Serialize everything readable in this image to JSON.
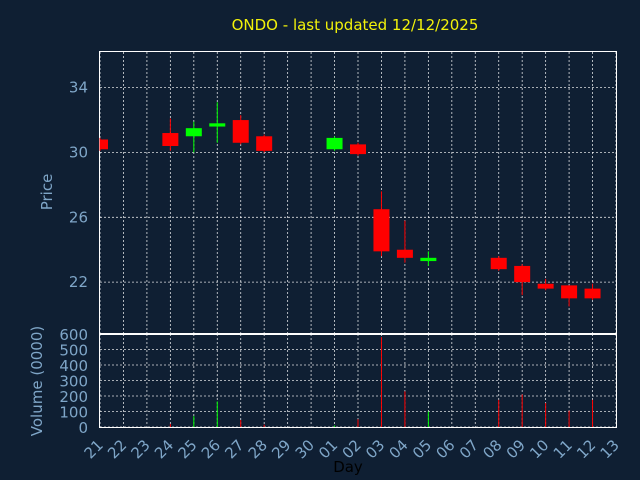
{
  "chart_data": {
    "type": "candlestick",
    "title": "ONDO - last updated 12/12/2025",
    "ylabel_price": "Price",
    "ylabel_volume": "Volume (0000)",
    "xlabel": "Day",
    "price_ticks": [
      "34",
      "30",
      "26",
      "22"
    ],
    "volume_ticks": [
      "600",
      "500",
      "400",
      "300",
      "200",
      "100",
      "0"
    ],
    "price_ylim": [
      18.8,
      36.2
    ],
    "volume_ylim": [
      0,
      600
    ],
    "grid": true,
    "up_color": "#00ff00",
    "down_color": "#ff0000",
    "x_labels": [
      "21",
      "22",
      "23",
      "24",
      "25",
      "26",
      "27",
      "28",
      "29",
      "30",
      "01",
      "02",
      "03",
      "04",
      "05",
      "06",
      "07",
      "08",
      "09",
      "10",
      "11",
      "12",
      "13"
    ],
    "candles": [
      {
        "day": "21",
        "open": 30.8,
        "close": 30.2,
        "high": 30.9,
        "low": 30.1,
        "volume": 0
      },
      {
        "day": "24",
        "open": 31.2,
        "close": 30.4,
        "high": 32.1,
        "low": 30.1,
        "volume": 20
      },
      {
        "day": "25",
        "open": 31.0,
        "close": 31.5,
        "high": 31.9,
        "low": 30.0,
        "volume": 70
      },
      {
        "day": "26",
        "open": 31.6,
        "close": 31.8,
        "high": 33.1,
        "low": 30.6,
        "volume": 165
      },
      {
        "day": "27",
        "open": 32.0,
        "close": 30.6,
        "high": 32.3,
        "low": 30.5,
        "volume": 45
      },
      {
        "day": "28",
        "open": 31.0,
        "close": 30.1,
        "high": 31.1,
        "low": 30.0,
        "volume": 15
      },
      {
        "day": "01",
        "open": 30.2,
        "close": 30.9,
        "high": 31.0,
        "low": 30.1,
        "volume": 10
      },
      {
        "day": "02",
        "open": 30.5,
        "close": 29.9,
        "high": 30.6,
        "low": 29.8,
        "volume": 50
      },
      {
        "day": "03",
        "open": 26.5,
        "close": 23.9,
        "high": 27.6,
        "low": 23.6,
        "volume": 580
      },
      {
        "day": "04",
        "open": 24.0,
        "close": 23.5,
        "high": 25.8,
        "low": 23.2,
        "volume": 230
      },
      {
        "day": "05",
        "open": 23.3,
        "close": 23.5,
        "high": 23.9,
        "low": 23.0,
        "volume": 100
      },
      {
        "day": "08",
        "open": 23.5,
        "close": 22.8,
        "high": 23.6,
        "low": 22.7,
        "volume": 175
      },
      {
        "day": "09",
        "open": 23.0,
        "close": 22.0,
        "high": 23.1,
        "low": 21.2,
        "volume": 210
      },
      {
        "day": "10",
        "open": 21.9,
        "close": 21.6,
        "high": 22.2,
        "low": 21.5,
        "volume": 155
      },
      {
        "day": "11",
        "open": 21.8,
        "close": 21.0,
        "high": 21.8,
        "low": 20.5,
        "volume": 105
      },
      {
        "day": "12",
        "open": 21.6,
        "close": 21.0,
        "high": 21.9,
        "low": 20.9,
        "volume": 175
      }
    ]
  }
}
